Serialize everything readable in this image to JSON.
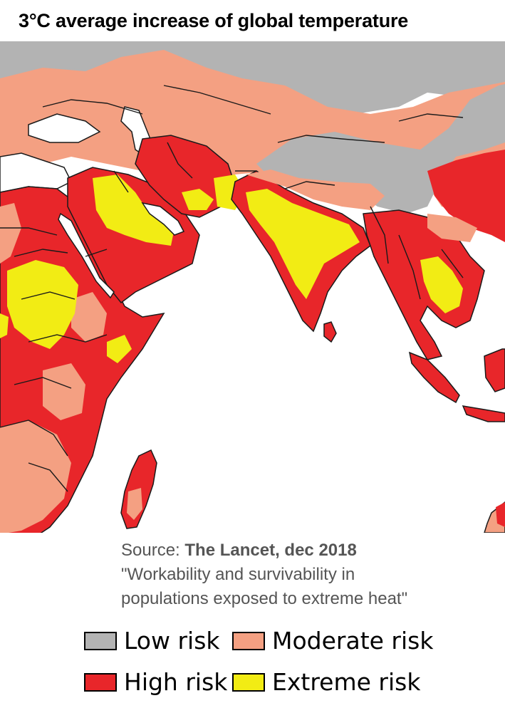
{
  "title": "3°C average increase of global temperature",
  "source": {
    "prefix": "Source: ",
    "name": "The Lancet, dec 2018",
    "line2": "\"Workability and survivability in",
    "line3": "populations exposed to extreme heat\""
  },
  "legend": [
    {
      "label": "Low risk",
      "color": "#b3b3b3"
    },
    {
      "label": "Moderate risk",
      "color": "#f4a082"
    },
    {
      "label": "High risk",
      "color": "#e8262a"
    },
    {
      "label": "Extreme risk",
      "color": "#f2ec14"
    }
  ],
  "colors": {
    "ocean": "#ffffff",
    "low": "#b3b3b3",
    "moderate": "#f4a082",
    "high": "#e8262a",
    "extreme": "#f2ec14",
    "border": "#1a1a1a"
  }
}
